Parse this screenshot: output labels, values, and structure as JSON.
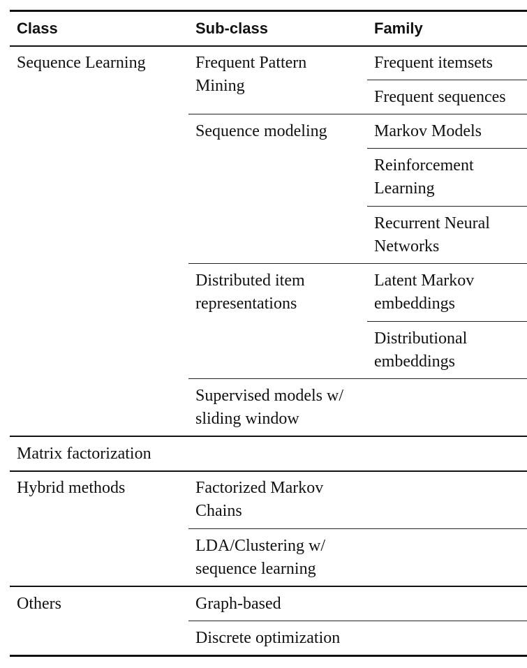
{
  "header": {
    "class": "Class",
    "subclass": "Sub-class",
    "family": "Family"
  },
  "rows": {
    "sequence_learning": {
      "class": "Sequence Learning",
      "fpm": {
        "subclass_line1": "Frequent Pattern",
        "subclass_line2": "Mining",
        "family_1": "Frequent itemsets",
        "family_2": "Frequent sequences"
      },
      "seqmod": {
        "subclass": "Sequence modeling",
        "family_1": "Markov Models",
        "family_2_line1": "Reinforcement",
        "family_2_line2": "Learning",
        "family_3_line1": "Recurrent Neural",
        "family_3_line2": "Networks"
      },
      "dist": {
        "subclass_line1": "Distributed item",
        "subclass_line2": "representations",
        "family_1_line1": "Latent Markov",
        "family_1_line2": "embeddings",
        "family_2_line1": "Distributional",
        "family_2_line2": "embeddings"
      },
      "sup": {
        "subclass_line1": "Supervised models w/",
        "subclass_line2": "sliding window"
      }
    },
    "matrix_factorization": {
      "class": "Matrix factorization"
    },
    "hybrid": {
      "class": "Hybrid methods",
      "fmc_line1": "Factorized Markov",
      "fmc_line2": "Chains",
      "lda_line1": "LDA/Clustering w/",
      "lda_line2": "sequence learning"
    },
    "others": {
      "class": "Others",
      "graph": "Graph-based",
      "discrete": "Discrete optimization"
    }
  }
}
